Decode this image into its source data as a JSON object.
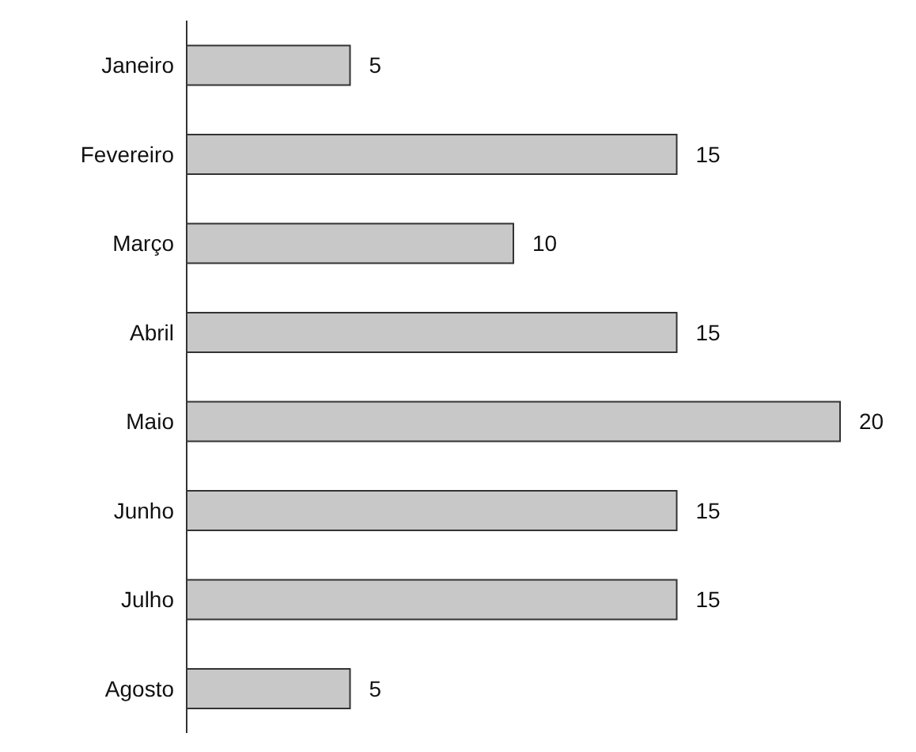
{
  "chart_data": {
    "type": "bar",
    "orientation": "horizontal",
    "categories": [
      "Janeiro",
      "Fevereiro",
      "Março",
      "Abril",
      "Maio",
      "Junho",
      "Julho",
      "Agosto"
    ],
    "values": [
      5,
      15,
      10,
      15,
      20,
      15,
      15,
      5
    ],
    "color": "#c8c8c8",
    "data_labels": true,
    "tick_labels": "y"
  }
}
